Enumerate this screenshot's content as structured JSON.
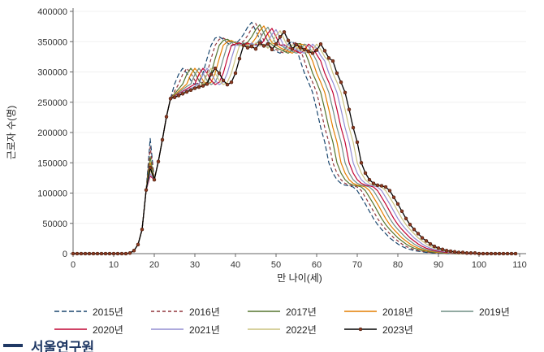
{
  "page": {
    "background": "#ffffff"
  },
  "footer": {
    "bullet": "bar",
    "text": "서울연구원",
    "color": "#1f3864"
  },
  "chart_data": {
    "type": "line",
    "title": "",
    "xlabel": "만 나이(세)",
    "ylabel": "근로자 수(명)",
    "xlim": [
      0,
      112
    ],
    "ylim": [
      0,
      400000
    ],
    "x_ticks": [
      0,
      10,
      20,
      30,
      40,
      50,
      60,
      70,
      80,
      90,
      100,
      110
    ],
    "y_ticks": [
      0,
      50000,
      100000,
      150000,
      200000,
      250000,
      300000,
      350000,
      400000
    ],
    "grid": "horizontal-light",
    "legend_position": "bottom-two-rows",
    "x_start": 0,
    "x_step": 1,
    "series": [
      {
        "name": "2015년",
        "color": "#1a476f",
        "style": "dashed",
        "dash": "6 3",
        "marker": null,
        "values": [
          0,
          0,
          0,
          0,
          0,
          0,
          0,
          0,
          0,
          0,
          0,
          0,
          0,
          0,
          1000,
          5000,
          15000,
          40000,
          105000,
          190000,
          122000,
          152000,
          188000,
          226000,
          256000,
          280000,
          296000,
          306000,
          298000,
          286000,
          279000,
          283000,
          298000,
          322000,
          344000,
          356000,
          358000,
          354000,
          348000,
          343000,
          346000,
          353000,
          362000,
          374000,
          382000,
          368000,
          354000,
          345000,
          340000,
          337000,
          334000,
          331000,
          336000,
          346000,
          351000,
          339000,
          318000,
          298000,
          283000,
          266000,
          238000,
          208000,
          184000,
          150000,
          133000,
          122000,
          116000,
          113000,
          112000,
          110000,
          104000,
          93000,
          82000,
          70000,
          58000,
          48000,
          40000,
          33000,
          26000,
          21000,
          16000,
          12000,
          9000,
          7000,
          5000,
          4000,
          3000,
          2000,
          2000,
          1000,
          1000,
          1000,
          0,
          0,
          0,
          0,
          0,
          0,
          0,
          0,
          0,
          0,
          0,
          0,
          0,
          0,
          0,
          0,
          0,
          0
        ]
      },
      {
        "name": "2016년",
        "color": "#90353b",
        "style": "dashed",
        "dash": "4 3",
        "marker": null,
        "values": [
          0,
          0,
          0,
          0,
          0,
          0,
          0,
          0,
          0,
          0,
          0,
          0,
          0,
          0,
          1000,
          5000,
          15000,
          40000,
          105000,
          176000,
          122000,
          152000,
          188000,
          226000,
          256000,
          268000,
          280000,
          296000,
          306000,
          298000,
          286000,
          279000,
          283000,
          298000,
          322000,
          344000,
          354000,
          356000,
          352000,
          348000,
          343000,
          346000,
          351000,
          360000,
          372000,
          380000,
          366000,
          352000,
          345000,
          340000,
          337000,
          334000,
          331000,
          336000,
          346000,
          349000,
          337000,
          318000,
          298000,
          283000,
          266000,
          238000,
          208000,
          184000,
          150000,
          133000,
          122000,
          116000,
          113000,
          112000,
          110000,
          104000,
          93000,
          82000,
          70000,
          58000,
          48000,
          40000,
          33000,
          26000,
          21000,
          16000,
          12000,
          9000,
          7000,
          5000,
          4000,
          3000,
          2000,
          2000,
          1000,
          1000,
          1000,
          0,
          0,
          0,
          0,
          0,
          0,
          0,
          0,
          0,
          0,
          0,
          0,
          0,
          0,
          0,
          0,
          0
        ]
      },
      {
        "name": "2017년",
        "color": "#55752f",
        "style": "solid",
        "dash": null,
        "marker": null,
        "values": [
          0,
          0,
          0,
          0,
          0,
          0,
          0,
          0,
          0,
          0,
          0,
          0,
          0,
          0,
          1000,
          5000,
          15000,
          40000,
          105000,
          160000,
          122000,
          152000,
          188000,
          226000,
          256000,
          264000,
          272000,
          280000,
          296000,
          306000,
          298000,
          286000,
          279000,
          283000,
          298000,
          322000,
          344000,
          352000,
          354000,
          350000,
          348000,
          343000,
          346000,
          349000,
          358000,
          370000,
          378000,
          364000,
          350000,
          345000,
          340000,
          337000,
          334000,
          331000,
          336000,
          346000,
          347000,
          335000,
          318000,
          298000,
          283000,
          266000,
          238000,
          208000,
          184000,
          150000,
          133000,
          122000,
          116000,
          113000,
          112000,
          110000,
          104000,
          93000,
          82000,
          70000,
          58000,
          48000,
          40000,
          33000,
          26000,
          21000,
          16000,
          12000,
          9000,
          7000,
          5000,
          4000,
          3000,
          2000,
          2000,
          1000,
          1000,
          1000,
          0,
          0,
          0,
          0,
          0,
          0,
          0,
          0,
          0,
          0,
          0,
          0,
          0,
          0,
          0,
          0
        ]
      },
      {
        "name": "2018년",
        "color": "#e37e00",
        "style": "solid",
        "dash": null,
        "marker": null,
        "values": [
          0,
          0,
          0,
          0,
          0,
          0,
          0,
          0,
          0,
          0,
          0,
          0,
          0,
          0,
          1000,
          5000,
          15000,
          40000,
          105000,
          150000,
          122000,
          152000,
          188000,
          226000,
          256000,
          262000,
          268000,
          274000,
          280000,
          296000,
          306000,
          298000,
          286000,
          279000,
          283000,
          298000,
          322000,
          344000,
          350000,
          352000,
          348000,
          348000,
          343000,
          346000,
          347000,
          356000,
          368000,
          376000,
          362000,
          348000,
          345000,
          340000,
          337000,
          334000,
          331000,
          336000,
          346000,
          345000,
          333000,
          318000,
          298000,
          283000,
          266000,
          238000,
          208000,
          184000,
          150000,
          133000,
          122000,
          116000,
          113000,
          112000,
          110000,
          104000,
          93000,
          82000,
          70000,
          58000,
          48000,
          40000,
          33000,
          26000,
          21000,
          16000,
          12000,
          9000,
          7000,
          5000,
          4000,
          3000,
          2000,
          2000,
          1000,
          1000,
          1000,
          0,
          0,
          0,
          0,
          0,
          0,
          0,
          0,
          0,
          0,
          0,
          0,
          0,
          0,
          0
        ]
      },
      {
        "name": "2019년",
        "color": "#6e8e84",
        "style": "solid",
        "dash": null,
        "marker": null,
        "values": [
          0,
          0,
          0,
          0,
          0,
          0,
          0,
          0,
          0,
          0,
          0,
          0,
          0,
          0,
          1000,
          5000,
          15000,
          40000,
          105000,
          146000,
          122000,
          152000,
          188000,
          226000,
          256000,
          261000,
          266000,
          271000,
          276000,
          280000,
          296000,
          306000,
          298000,
          286000,
          279000,
          283000,
          298000,
          322000,
          344000,
          348000,
          350000,
          346000,
          348000,
          343000,
          346000,
          345000,
          354000,
          366000,
          374000,
          360000,
          346000,
          345000,
          340000,
          337000,
          334000,
          331000,
          336000,
          346000,
          343000,
          331000,
          318000,
          298000,
          283000,
          266000,
          238000,
          208000,
          184000,
          150000,
          133000,
          122000,
          116000,
          113000,
          112000,
          110000,
          104000,
          93000,
          82000,
          70000,
          58000,
          48000,
          40000,
          33000,
          26000,
          21000,
          16000,
          12000,
          9000,
          7000,
          5000,
          4000,
          3000,
          2000,
          2000,
          1000,
          1000,
          1000,
          0,
          0,
          0,
          0,
          0,
          0,
          0,
          0,
          0,
          0,
          0,
          0,
          0,
          0
        ]
      },
      {
        "name": "2020년",
        "color": "#c10534",
        "style": "solid",
        "dash": null,
        "marker": null,
        "values": [
          0,
          0,
          0,
          0,
          0,
          0,
          0,
          0,
          0,
          0,
          0,
          0,
          0,
          0,
          1000,
          5000,
          15000,
          40000,
          105000,
          128000,
          122000,
          152000,
          188000,
          226000,
          256000,
          260000,
          264000,
          268000,
          272000,
          276000,
          280000,
          296000,
          306000,
          298000,
          286000,
          279000,
          283000,
          298000,
          322000,
          344000,
          346000,
          348000,
          344000,
          348000,
          343000,
          346000,
          343000,
          352000,
          364000,
          372000,
          358000,
          344000,
          345000,
          340000,
          337000,
          334000,
          331000,
          336000,
          346000,
          341000,
          329000,
          318000,
          298000,
          283000,
          266000,
          238000,
          208000,
          184000,
          150000,
          133000,
          122000,
          116000,
          113000,
          112000,
          110000,
          104000,
          93000,
          82000,
          70000,
          58000,
          48000,
          40000,
          33000,
          26000,
          21000,
          16000,
          12000,
          9000,
          7000,
          5000,
          4000,
          3000,
          2000,
          2000,
          1000,
          1000,
          1000,
          0,
          0,
          0,
          0,
          0,
          0,
          0,
          0,
          0,
          0,
          0,
          0,
          0
        ]
      },
      {
        "name": "2021년",
        "color": "#938dd2",
        "style": "solid",
        "dash": null,
        "marker": null,
        "values": [
          0,
          0,
          0,
          0,
          0,
          0,
          0,
          0,
          0,
          0,
          0,
          0,
          0,
          0,
          1000,
          5000,
          15000,
          40000,
          105000,
          132000,
          122000,
          152000,
          188000,
          226000,
          256000,
          259000,
          263000,
          267000,
          270000,
          273000,
          276000,
          280000,
          296000,
          306000,
          298000,
          286000,
          279000,
          283000,
          298000,
          322000,
          344000,
          344000,
          346000,
          342000,
          348000,
          343000,
          346000,
          341000,
          350000,
          362000,
          370000,
          356000,
          342000,
          345000,
          340000,
          337000,
          334000,
          331000,
          336000,
          346000,
          339000,
          327000,
          318000,
          298000,
          283000,
          266000,
          238000,
          208000,
          184000,
          150000,
          133000,
          122000,
          116000,
          113000,
          112000,
          110000,
          104000,
          93000,
          82000,
          70000,
          58000,
          48000,
          40000,
          33000,
          26000,
          21000,
          16000,
          12000,
          9000,
          7000,
          5000,
          4000,
          3000,
          2000,
          2000,
          1000,
          1000,
          1000,
          0,
          0,
          0,
          0,
          0,
          0,
          0,
          0,
          0,
          0,
          0,
          0
        ]
      },
      {
        "name": "2022년",
        "color": "#cac27e",
        "style": "solid",
        "dash": null,
        "marker": null,
        "values": [
          0,
          0,
          0,
          0,
          0,
          0,
          0,
          0,
          0,
          0,
          0,
          0,
          0,
          0,
          1000,
          5000,
          15000,
          40000,
          105000,
          138000,
          122000,
          152000,
          188000,
          226000,
          256000,
          258000,
          262000,
          265000,
          268000,
          271000,
          274000,
          277000,
          280000,
          296000,
          306000,
          298000,
          286000,
          279000,
          283000,
          298000,
          322000,
          344000,
          342000,
          344000,
          340000,
          348000,
          343000,
          346000,
          339000,
          348000,
          360000,
          368000,
          354000,
          340000,
          345000,
          340000,
          337000,
          334000,
          331000,
          336000,
          346000,
          337000,
          325000,
          318000,
          298000,
          283000,
          266000,
          238000,
          208000,
          184000,
          150000,
          133000,
          122000,
          116000,
          113000,
          112000,
          110000,
          104000,
          93000,
          82000,
          70000,
          58000,
          48000,
          40000,
          33000,
          26000,
          21000,
          16000,
          12000,
          9000,
          7000,
          5000,
          4000,
          3000,
          2000,
          2000,
          1000,
          1000,
          1000,
          0,
          0,
          0,
          0,
          0,
          0,
          0,
          0,
          0,
          0,
          0
        ]
      },
      {
        "name": "2023년",
        "color": "#000000",
        "style": "solid-marker",
        "dash": null,
        "marker": {
          "shape": "circle",
          "fill": "#8c3b22",
          "edge": "#3a1408",
          "size": 2
        },
        "values": [
          0,
          0,
          0,
          0,
          0,
          0,
          0,
          0,
          0,
          0,
          0,
          0,
          0,
          0,
          1000,
          5000,
          15000,
          40000,
          105000,
          142000,
          122000,
          152000,
          188000,
          226000,
          256000,
          258000,
          261000,
          264000,
          267000,
          270000,
          273000,
          275000,
          277000,
          280000,
          296000,
          306000,
          298000,
          286000,
          279000,
          283000,
          298000,
          322000,
          344000,
          340000,
          342000,
          338000,
          348000,
          343000,
          346000,
          337000,
          346000,
          358000,
          366000,
          352000,
          338000,
          345000,
          340000,
          337000,
          334000,
          331000,
          336000,
          346000,
          335000,
          323000,
          318000,
          298000,
          283000,
          266000,
          238000,
          208000,
          184000,
          150000,
          133000,
          122000,
          116000,
          113000,
          112000,
          110000,
          104000,
          93000,
          82000,
          70000,
          58000,
          48000,
          40000,
          33000,
          26000,
          21000,
          16000,
          12000,
          9000,
          7000,
          5000,
          4000,
          3000,
          2000,
          2000,
          1000,
          1000,
          1000,
          0,
          0,
          0,
          0,
          0,
          0,
          0,
          0,
          0,
          0
        ]
      }
    ],
    "axis_color": "#666666",
    "grid_color": "#f0f0f0",
    "tick_label_color": "#333333"
  }
}
